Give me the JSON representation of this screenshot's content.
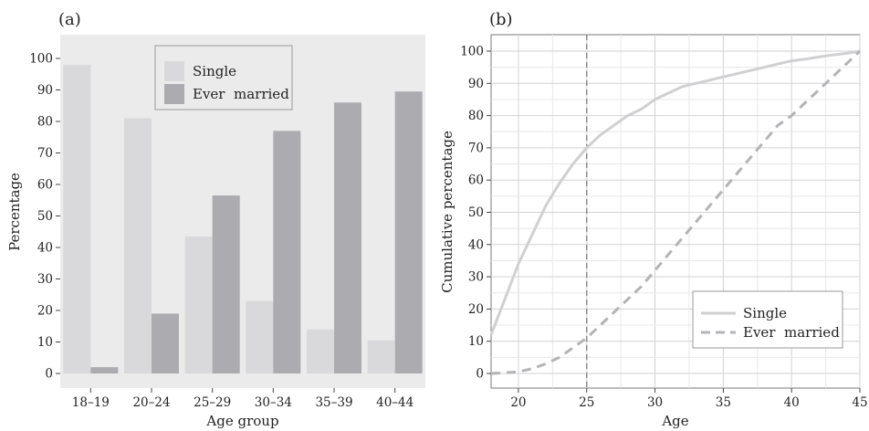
{
  "chart_data": [
    {
      "type": "bar",
      "panel_label": "(a)",
      "xlabel": "Age group",
      "ylabel": "Percentage",
      "ylim": [
        0,
        100
      ],
      "yticks": [
        0,
        10,
        20,
        30,
        40,
        50,
        60,
        70,
        80,
        90,
        100
      ],
      "categories": [
        "18–19",
        "20–24",
        "25–29",
        "30–34",
        "35–39",
        "40–44"
      ],
      "series": [
        {
          "name": "Single",
          "color": "#d9d9db",
          "values": [
            98,
            81,
            43.5,
            23,
            14,
            10.5
          ]
        },
        {
          "name": "Ever  married",
          "color": "#acacb0",
          "values": [
            2,
            19,
            56.5,
            77,
            86,
            89.5
          ]
        }
      ],
      "legend_position": "top-right",
      "grid": false
    },
    {
      "type": "line",
      "panel_label": "(b)",
      "xlabel": "Age",
      "ylabel": "Cumulative percentage",
      "xlim": [
        18,
        45
      ],
      "ylim": [
        0,
        100
      ],
      "xticks": [
        20,
        25,
        30,
        35,
        40,
        45
      ],
      "yticks": [
        0,
        10,
        20,
        30,
        40,
        50,
        60,
        70,
        80,
        90,
        100
      ],
      "vline": 25,
      "series": [
        {
          "name": "Single",
          "style": "solid",
          "color": "#d0d0d3",
          "x": [
            18,
            19,
            20,
            21,
            22,
            23,
            24,
            25,
            26,
            27,
            28,
            29,
            30,
            31,
            32,
            33,
            34,
            35,
            36,
            37,
            38,
            39,
            40,
            41,
            42,
            43,
            44,
            45
          ],
          "y": [
            12,
            23,
            34,
            43,
            52,
            59,
            65,
            70,
            74,
            77,
            80,
            82,
            85,
            87,
            89,
            90,
            91,
            92,
            93,
            94,
            95,
            96,
            97,
            97.5,
            98.2,
            98.8,
            99.3,
            100
          ]
        },
        {
          "name": "Ever  married",
          "style": "dashed",
          "color": "#b4b4b8",
          "x": [
            18,
            19,
            20,
            21,
            22,
            23,
            24,
            25,
            26,
            27,
            28,
            29,
            30,
            31,
            32,
            33,
            34,
            35,
            36,
            37,
            38,
            39,
            40,
            41,
            42,
            43,
            44,
            45
          ],
          "y": [
            0,
            0.2,
            0.5,
            1.5,
            3,
            5,
            8,
            11,
            15,
            19,
            23,
            27,
            32,
            37,
            42,
            47,
            52,
            57,
            62,
            67,
            72,
            77,
            80,
            84,
            88,
            92,
            96,
            100
          ]
        }
      ],
      "legend_position": "bottom-right",
      "grid": true
    }
  ]
}
